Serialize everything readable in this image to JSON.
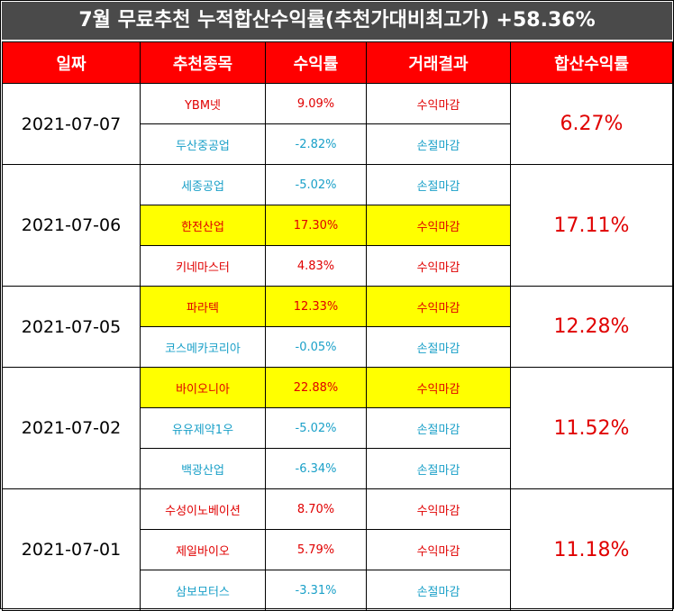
{
  "title": "7월 무료추천 누적합산수익률(추천가대비최고가) +58.36%",
  "headers": [
    "일짜",
    "추천종목",
    "수익률",
    "거래결과",
    "합산수익률"
  ],
  "colors": {
    "gain": "#e00000",
    "loss": "#1aa0c8",
    "highlight": "#ffff00",
    "header": "#ff0000",
    "title_bg": "#4a4a4a"
  },
  "groups": [
    {
      "date": "2021-07-07",
      "cumulative": "6.27%",
      "rows": [
        {
          "stock": "YBM넷",
          "ret": "9.09%",
          "result": "수익마감",
          "type": "up",
          "highlight": false
        },
        {
          "stock": "두산중공업",
          "ret": "-2.82%",
          "result": "손절마감",
          "type": "down",
          "highlight": false
        }
      ]
    },
    {
      "date": "2021-07-06",
      "cumulative": "17.11%",
      "rows": [
        {
          "stock": "세종공업",
          "ret": "-5.02%",
          "result": "손절마감",
          "type": "down",
          "highlight": false
        },
        {
          "stock": "한전산업",
          "ret": "17.30%",
          "result": "수익마감",
          "type": "up",
          "highlight": true
        },
        {
          "stock": "키네마스터",
          "ret": "4.83%",
          "result": "수익마감",
          "type": "up",
          "highlight": false
        }
      ]
    },
    {
      "date": "2021-07-05",
      "cumulative": "12.28%",
      "rows": [
        {
          "stock": "파라텍",
          "ret": "12.33%",
          "result": "수익마감",
          "type": "up",
          "highlight": true
        },
        {
          "stock": "코스메카코리아",
          "ret": "-0.05%",
          "result": "손절마감",
          "type": "down",
          "highlight": false
        }
      ]
    },
    {
      "date": "2021-07-02",
      "cumulative": "11.52%",
      "rows": [
        {
          "stock": "바이오니아",
          "ret": "22.88%",
          "result": "수익마감",
          "type": "up",
          "highlight": true
        },
        {
          "stock": "유유제약1우",
          "ret": "-5.02%",
          "result": "손절마감",
          "type": "down",
          "highlight": false
        },
        {
          "stock": "백광산업",
          "ret": "-6.34%",
          "result": "손절마감",
          "type": "down",
          "highlight": false
        }
      ]
    },
    {
      "date": "2021-07-01",
      "cumulative": "11.18%",
      "rows": [
        {
          "stock": "수성이노베이션",
          "ret": "8.70%",
          "result": "수익마감",
          "type": "up",
          "highlight": false
        },
        {
          "stock": "제일바이오",
          "ret": "5.79%",
          "result": "수익마감",
          "type": "up",
          "highlight": false
        },
        {
          "stock": "삼보모터스",
          "ret": "-3.31%",
          "result": "손절마감",
          "type": "down",
          "highlight": false
        }
      ]
    }
  ]
}
